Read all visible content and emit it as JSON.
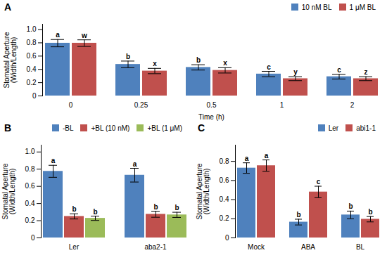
{
  "chart_data": [
    {
      "type": "bar",
      "title": "A",
      "xlabel": "Time (h)",
      "ylabel": "Stomatal Aperture\n(Width/Length)",
      "categories": [
        "0",
        "0.25",
        "0.5",
        "1",
        "2"
      ],
      "series": [
        {
          "name": "10 nM BL",
          "color": "#4f81bd",
          "values": [
            0.795,
            0.475,
            0.43,
            0.33,
            0.29
          ],
          "errors": [
            0.055,
            0.05,
            0.04,
            0.04,
            0.035
          ],
          "annotations": [
            "a",
            "b",
            "b",
            "c",
            "c"
          ]
        },
        {
          "name": "1 μM BL",
          "color": "#c0504d",
          "values": [
            0.795,
            0.375,
            0.385,
            0.26,
            0.26
          ],
          "errors": [
            0.05,
            0.04,
            0.04,
            0.03,
            0.03
          ],
          "annotations": [
            "w",
            "x",
            "x",
            "y",
            "z"
          ]
        }
      ],
      "ylim": [
        0,
        1.08
      ],
      "yticks": [
        0,
        0.2,
        0.4,
        0.6,
        0.8,
        {
          "value": 1,
          "label": "1.0"
        }
      ],
      "legend": "upper right"
    },
    {
      "type": "bar",
      "title": "B",
      "ylabel": "Stomatal Aperture\n(Width/Length)",
      "categories": [
        "Ler",
        "aba2-1"
      ],
      "series": [
        {
          "name": "-BL",
          "color": "#4f81bd",
          "values": [
            0.775,
            0.73
          ],
          "errors": [
            0.07,
            0.08
          ],
          "annotations": [
            "a",
            "a"
          ]
        },
        {
          "name": "+BL (10 nM)",
          "color": "#c0504d",
          "values": [
            0.25,
            0.275
          ],
          "errors": [
            0.03,
            0.035
          ],
          "annotations": [
            "b",
            "b"
          ]
        },
        {
          "name": "+BL (1 μM)",
          "color": "#9bbb59",
          "values": [
            0.228,
            0.268
          ],
          "errors": [
            0.025,
            0.03
          ],
          "annotations": [
            "b",
            "b"
          ]
        }
      ],
      "ylim": [
        0,
        1.08
      ],
      "yticks": [
        0,
        0.2,
        0.4,
        0.6,
        0.8,
        {
          "value": 1,
          "label": "1.0"
        }
      ],
      "legend": "upper right"
    },
    {
      "type": "bar",
      "title": "C",
      "ylabel": "Stomatal Aperture\n(Width/Length)",
      "categories": [
        "Mock",
        "ABA",
        "BL"
      ],
      "series": [
        {
          "name": "Ler",
          "color": "#4f81bd",
          "values": [
            0.73,
            0.165,
            0.24
          ],
          "errors": [
            0.055,
            0.03,
            0.04
          ],
          "annotations": [
            "a",
            "b",
            "b"
          ]
        },
        {
          "name": "abi1-1",
          "color": "#c0504d",
          "values": [
            0.755,
            0.48,
            0.195
          ],
          "errors": [
            0.06,
            0.06,
            0.028
          ],
          "annotations": [
            "a",
            "c",
            "b"
          ]
        }
      ],
      "ylim": [
        0,
        0.97
      ],
      "yticks": [
        0,
        0.2,
        0.4,
        0.6,
        0.8
      ],
      "legend": "upper right"
    }
  ]
}
